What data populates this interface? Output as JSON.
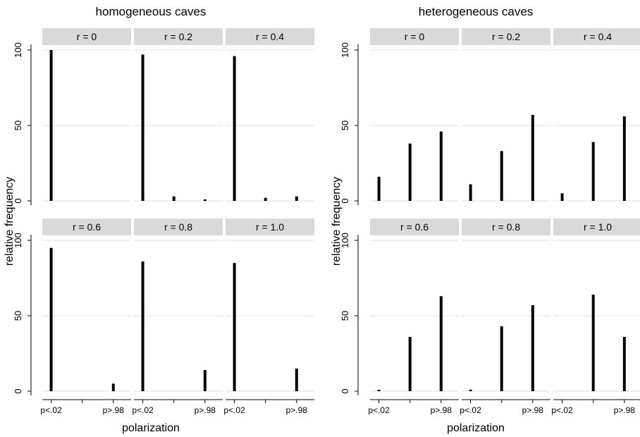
{
  "chart_data": [
    {
      "type": "bar",
      "title": "homogeneous caves",
      "xlabel": "polarization",
      "ylabel": "relative frequency",
      "categories": [
        "p<.02",
        "",
        "p>.98"
      ],
      "yticks": [
        0,
        50,
        100
      ],
      "ylim": [
        0,
        100
      ],
      "grid": true,
      "panels": [
        {
          "label": "r = 0",
          "values": [
            100,
            0,
            0
          ]
        },
        {
          "label": "r = 0.2",
          "values": [
            97,
            3,
            1
          ]
        },
        {
          "label": "r = 0.4",
          "values": [
            96,
            2,
            3
          ]
        },
        {
          "label": "r = 0.6",
          "values": [
            95,
            0,
            5
          ]
        },
        {
          "label": "r = 0.8",
          "values": [
            86,
            0,
            14
          ]
        },
        {
          "label": "r = 1.0",
          "values": [
            85,
            0,
            15
          ]
        }
      ]
    },
    {
      "type": "bar",
      "title": "heterogeneous caves",
      "xlabel": "polarization",
      "ylabel": "relative frequency",
      "categories": [
        "p<.02",
        "",
        "p>.98"
      ],
      "yticks": [
        0,
        50,
        100
      ],
      "ylim": [
        0,
        100
      ],
      "grid": true,
      "panels": [
        {
          "label": "r = 0",
          "values": [
            16,
            38,
            46
          ]
        },
        {
          "label": "r = 0.2",
          "values": [
            11,
            33,
            57
          ]
        },
        {
          "label": "r = 0.4",
          "values": [
            5,
            39,
            56
          ]
        },
        {
          "label": "r = 0.6",
          "values": [
            1,
            36,
            63
          ]
        },
        {
          "label": "r = 0.8",
          "values": [
            1,
            43,
            57
          ]
        },
        {
          "label": "r = 1.0",
          "values": [
            0,
            64,
            36
          ]
        }
      ]
    }
  ],
  "colors": {
    "bar": "#000000",
    "strip": "#d9d9d9",
    "grid": "#e0e0e0",
    "axis": "#000000"
  }
}
